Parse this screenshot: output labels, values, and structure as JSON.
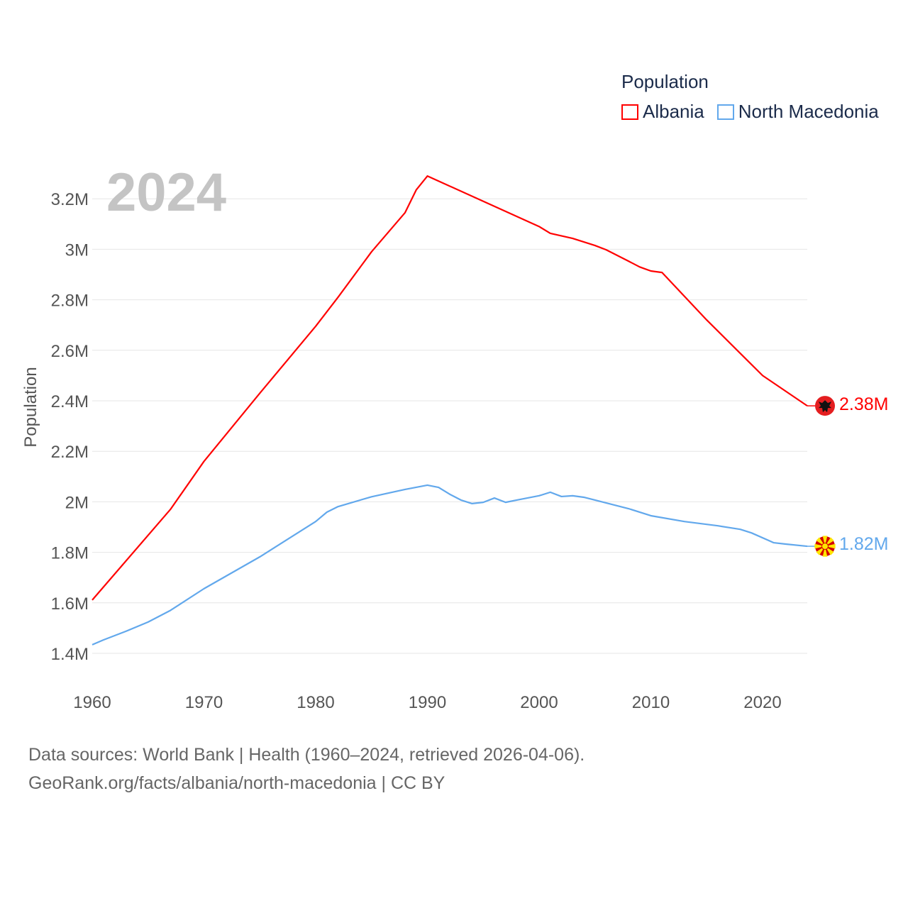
{
  "chart_data": {
    "type": "line",
    "title": "Population",
    "ylabel": "Population",
    "xlabel": "",
    "current_year": "2024",
    "xlim": [
      1960,
      2024
    ],
    "ylim": [
      1.3,
      3.3
    ],
    "x_ticks": [
      "1960",
      "1970",
      "1980",
      "1990",
      "2000",
      "2010",
      "2020"
    ],
    "y_ticks": [
      {
        "v": 1.4,
        "label": "1.4M"
      },
      {
        "v": 1.6,
        "label": "1.6M"
      },
      {
        "v": 1.8,
        "label": "1.8M"
      },
      {
        "v": 2.0,
        "label": "2M"
      },
      {
        "v": 2.2,
        "label": "2.2M"
      },
      {
        "v": 2.4,
        "label": "2.4M"
      },
      {
        "v": 2.6,
        "label": "2.6M"
      },
      {
        "v": 2.8,
        "label": "2.8M"
      },
      {
        "v": 3.0,
        "label": "3M"
      },
      {
        "v": 3.2,
        "label": "3.2M"
      }
    ],
    "grid": true,
    "legend_position": "top-right",
    "series": [
      {
        "name": "Albania",
        "color": "#ff0000",
        "end_label": "2.38M",
        "flag": "albania-flag",
        "points": [
          [
            1960,
            1.611
          ],
          [
            1967,
            1.97
          ],
          [
            1970,
            2.16
          ],
          [
            1975,
            2.43
          ],
          [
            1980,
            2.695
          ],
          [
            1982,
            2.81
          ],
          [
            1985,
            2.99
          ],
          [
            1988,
            3.145
          ],
          [
            1989,
            3.235
          ],
          [
            1990,
            3.29
          ],
          [
            1995,
            3.19
          ],
          [
            2000,
            3.09
          ],
          [
            2001,
            3.063
          ],
          [
            2003,
            3.043
          ],
          [
            2005,
            3.015
          ],
          [
            2006,
            2.998
          ],
          [
            2008,
            2.953
          ],
          [
            2009,
            2.93
          ],
          [
            2010,
            2.914
          ],
          [
            2011,
            2.908
          ],
          [
            2015,
            2.72
          ],
          [
            2020,
            2.5
          ],
          [
            2024,
            2.38
          ]
        ]
      },
      {
        "name": "North Macedonia",
        "color": "#62a8ec",
        "end_label": "1.82M",
        "flag": "north-macedonia-flag",
        "points": [
          [
            1960,
            1.434
          ],
          [
            1961,
            1.453
          ],
          [
            1963,
            1.487
          ],
          [
            1965,
            1.524
          ],
          [
            1967,
            1.57
          ],
          [
            1970,
            1.656
          ],
          [
            1975,
            1.782
          ],
          [
            1980,
            1.922
          ],
          [
            1981,
            1.959
          ],
          [
            1982,
            1.981
          ],
          [
            1985,
            2.02
          ],
          [
            1988,
            2.049
          ],
          [
            1990,
            2.066
          ],
          [
            1991,
            2.057
          ],
          [
            1992,
            2.03
          ],
          [
            1993,
            2.007
          ],
          [
            1994,
            1.993
          ],
          [
            1995,
            1.998
          ],
          [
            1996,
            2.015
          ],
          [
            1997,
            1.998
          ],
          [
            1998,
            2.007
          ],
          [
            2000,
            2.024
          ],
          [
            2001,
            2.038
          ],
          [
            2002,
            2.021
          ],
          [
            2003,
            2.024
          ],
          [
            2004,
            2.018
          ],
          [
            2005,
            2.007
          ],
          [
            2008,
            1.973
          ],
          [
            2010,
            1.945
          ],
          [
            2013,
            1.922
          ],
          [
            2016,
            1.905
          ],
          [
            2018,
            1.891
          ],
          [
            2019,
            1.877
          ],
          [
            2021,
            1.838
          ],
          [
            2022,
            1.833
          ],
          [
            2024,
            1.824
          ]
        ]
      }
    ]
  },
  "footer": {
    "line1": "Data sources: World Bank | Health (1960–2024, retrieved 2026-04-06).",
    "line2": "GeoRank.org/facts/albania/north-macedonia | CC BY"
  }
}
